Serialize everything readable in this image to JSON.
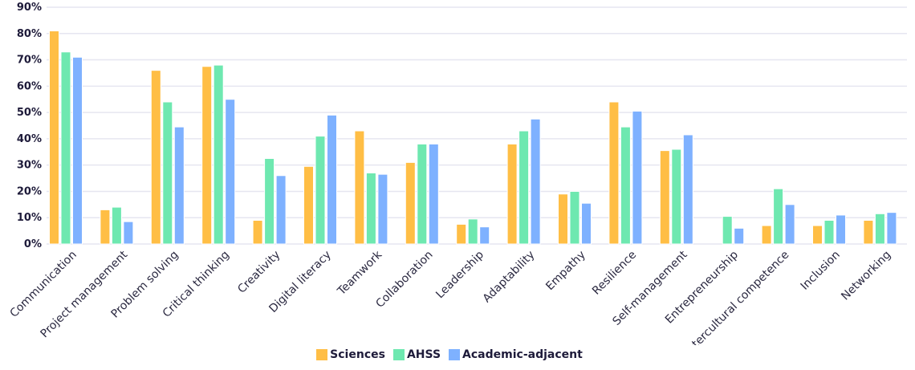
{
  "chart_data": {
    "type": "bar",
    "title": "",
    "xlabel": "",
    "ylabel": "",
    "ylim": [
      0,
      90
    ],
    "yticks": [
      "0%",
      "10%",
      "20%",
      "30%",
      "40%",
      "50%",
      "60%",
      "70%",
      "80%",
      "90%"
    ],
    "grid": true,
    "legend_position": "bottom",
    "categories": [
      "Communication",
      "Project management",
      "Problem solving",
      "Critical thinking",
      "Creativity",
      "Digital literacy",
      "Teamwork",
      "Collaboration",
      "Leadership",
      "Adaptability",
      "Empathy",
      "Resilience",
      "Self-management",
      "Entrepreneurship",
      "Intercultural competence",
      "Inclusion",
      "Networking"
    ],
    "series": [
      {
        "name": "Sciences",
        "color": "#ffbe45",
        "values": [
          81,
          13,
          66,
          67.5,
          9,
          29.5,
          43,
          31,
          7.5,
          38,
          19,
          54,
          35.5,
          0,
          7,
          7,
          9
        ]
      },
      {
        "name": "AHSS",
        "color": "#6ee8b0",
        "values": [
          73,
          14,
          54,
          68,
          32.5,
          41,
          27,
          38,
          9.5,
          43,
          20,
          44.5,
          36,
          10.5,
          21,
          9,
          11.5
        ]
      },
      {
        "name": "Academic-adjacent",
        "color": "#7eb1ff",
        "values": [
          71,
          8.5,
          44.5,
          55,
          26,
          49,
          26.5,
          38,
          6.5,
          47.5,
          15.5,
          50.5,
          41.5,
          6,
          15,
          11,
          12
        ]
      }
    ]
  }
}
